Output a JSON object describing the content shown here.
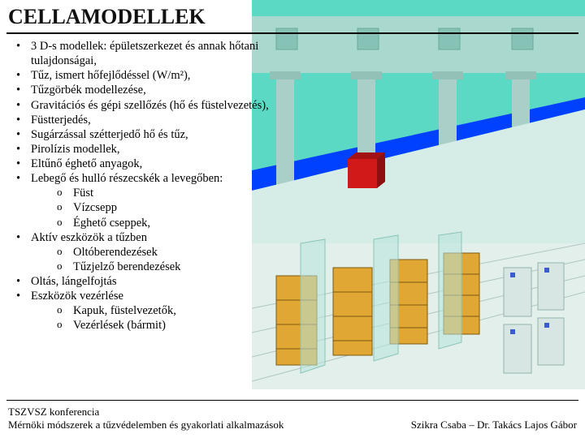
{
  "title": "CELLAMODELLEK",
  "bullets": [
    {
      "text": "3 D-s modellek: épületszerkezet és annak hőtani tulajdonságai,"
    },
    {
      "text": "Tűz, ismert hőfejlődéssel (W/m²),"
    },
    {
      "text": "Tűzgörbék modellezése,"
    },
    {
      "text": "Gravitációs és gépi szellőzés (hő és füstelvezetés),"
    },
    {
      "text": "Füstterjedés,"
    },
    {
      "text": "Sugárzással szétterjedő hő és tűz,"
    },
    {
      "text": "Pirolízis modellek,"
    },
    {
      "text": "Eltűnő éghető anyagok,"
    },
    {
      "text": "Lebegő és hulló részecskék a levegőben:",
      "sub": [
        "Füst",
        "Vízcsepp",
        "Éghető cseppek,"
      ]
    },
    {
      "text": "Aktív eszközök a tűzben",
      "sub": [
        "Oltóberendezések",
        "Tűzjelző berendezések"
      ]
    },
    {
      "text": "Oltás, lángelfojtás"
    },
    {
      "text": "Eszközök vezérlése",
      "sub": [
        "Kapuk, füstelvezetők,",
        "Vezérlések (bármit)"
      ]
    }
  ],
  "footer": {
    "left_line1": "TSZVSZ konferencia",
    "left_line2": "Mérnöki módszerek a tűzvédelemben és gyakorlati alkalmazások",
    "right": "Szikra Csaba – Dr. Takács Lajos Gábor"
  },
  "scene": {
    "sky_color": "#5cd9c4",
    "ground_color": "#cfe7e2",
    "wall_color": "#b9e6de",
    "pillar_color": "#a9cfc8",
    "beam_color": "#0041ff",
    "red_box_color": "#d11919",
    "rack_color": "#e0a734",
    "rack_line_color": "#7b5a12",
    "floor_grid_color": "#b0c7c2",
    "unit_color": "#d8e6e3"
  }
}
